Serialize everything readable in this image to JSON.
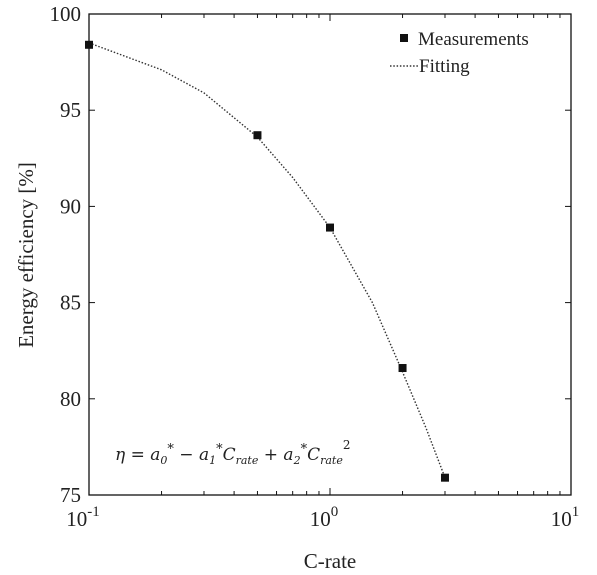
{
  "chart_data": {
    "type": "scatter",
    "xlabel": "C-rate",
    "ylabel": "Energy efficiency [%]",
    "x_scale": "log",
    "xlim": [
      0.1,
      10
    ],
    "ylim": [
      75,
      100
    ],
    "x_ticks": [
      {
        "value": 0.1,
        "base": "10",
        "exp": "-1"
      },
      {
        "value": 1,
        "base": "10",
        "exp": "0"
      },
      {
        "value": 10,
        "base": "10",
        "exp": "1"
      }
    ],
    "y_ticks": [
      75,
      80,
      85,
      90,
      95,
      100
    ],
    "grid": false,
    "legend_position": "top-right",
    "series": [
      {
        "name": "Measurements",
        "style": "square-marker",
        "color": "#111111",
        "x": [
          0.1,
          0.5,
          1,
          2,
          3
        ],
        "y": [
          98.4,
          93.7,
          88.9,
          81.6,
          75.9
        ]
      },
      {
        "name": "Fitting",
        "style": "dotted-line",
        "color": "#333333",
        "x": [
          0.1,
          0.2,
          0.3,
          0.5,
          0.7,
          1,
          1.5,
          2,
          2.5,
          3
        ],
        "y": [
          98.5,
          97.1,
          95.9,
          93.6,
          91.5,
          88.9,
          85.0,
          81.4,
          78.5,
          75.9
        ]
      }
    ],
    "annotation": {
      "eta": "η",
      "eq": "=",
      "a0": "a",
      "a0_sub": "0",
      "star": "*",
      "minus": "−",
      "a1": "a",
      "a1_sub": "1",
      "crate": "C",
      "crate_sub": "rate",
      "plus": "+",
      "a2": "a",
      "a2_sub": "2",
      "square": "2"
    }
  }
}
